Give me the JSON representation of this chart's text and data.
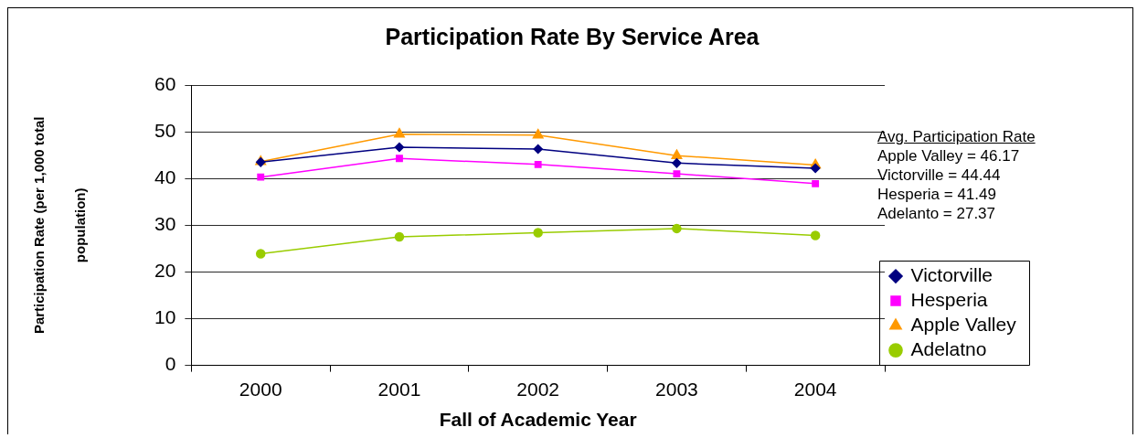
{
  "chart_data": {
    "type": "line",
    "title": "Participation Rate By Service Area",
    "xlabel": "Fall of Academic Year",
    "ylabel": "Participation Rate (per 1,000 total population)",
    "categories": [
      "2000",
      "2001",
      "2002",
      "2003",
      "2004"
    ],
    "series": [
      {
        "name": "Victorville",
        "color": "#000080",
        "marker": "diamond",
        "values": [
          43.5,
          46.7,
          46.3,
          43.3,
          42.2
        ]
      },
      {
        "name": "Hesperia",
        "color": "#ff00ff",
        "marker": "square",
        "values": [
          40.3,
          44.3,
          43.0,
          41.0,
          38.9
        ]
      },
      {
        "name": "Apple Valley",
        "color": "#ff9900",
        "marker": "triangle",
        "values": [
          43.6,
          49.5,
          49.3,
          44.9,
          42.9
        ]
      },
      {
        "name": "Adelatno",
        "color": "#99cc00",
        "marker": "circle",
        "values": [
          23.9,
          27.5,
          28.4,
          29.3,
          27.8
        ]
      }
    ],
    "ylim": [
      0,
      60
    ],
    "yticks": [
      0,
      10,
      20,
      30,
      40,
      50,
      60
    ],
    "grid": "y",
    "legend": "bottom right",
    "annotations": [
      "Avg. Participation Rate",
      "Apple Valley = 46.17",
      "Victorville = 44.44",
      "Hesperia = 41.49",
      "Adelanto = 27.37"
    ]
  }
}
